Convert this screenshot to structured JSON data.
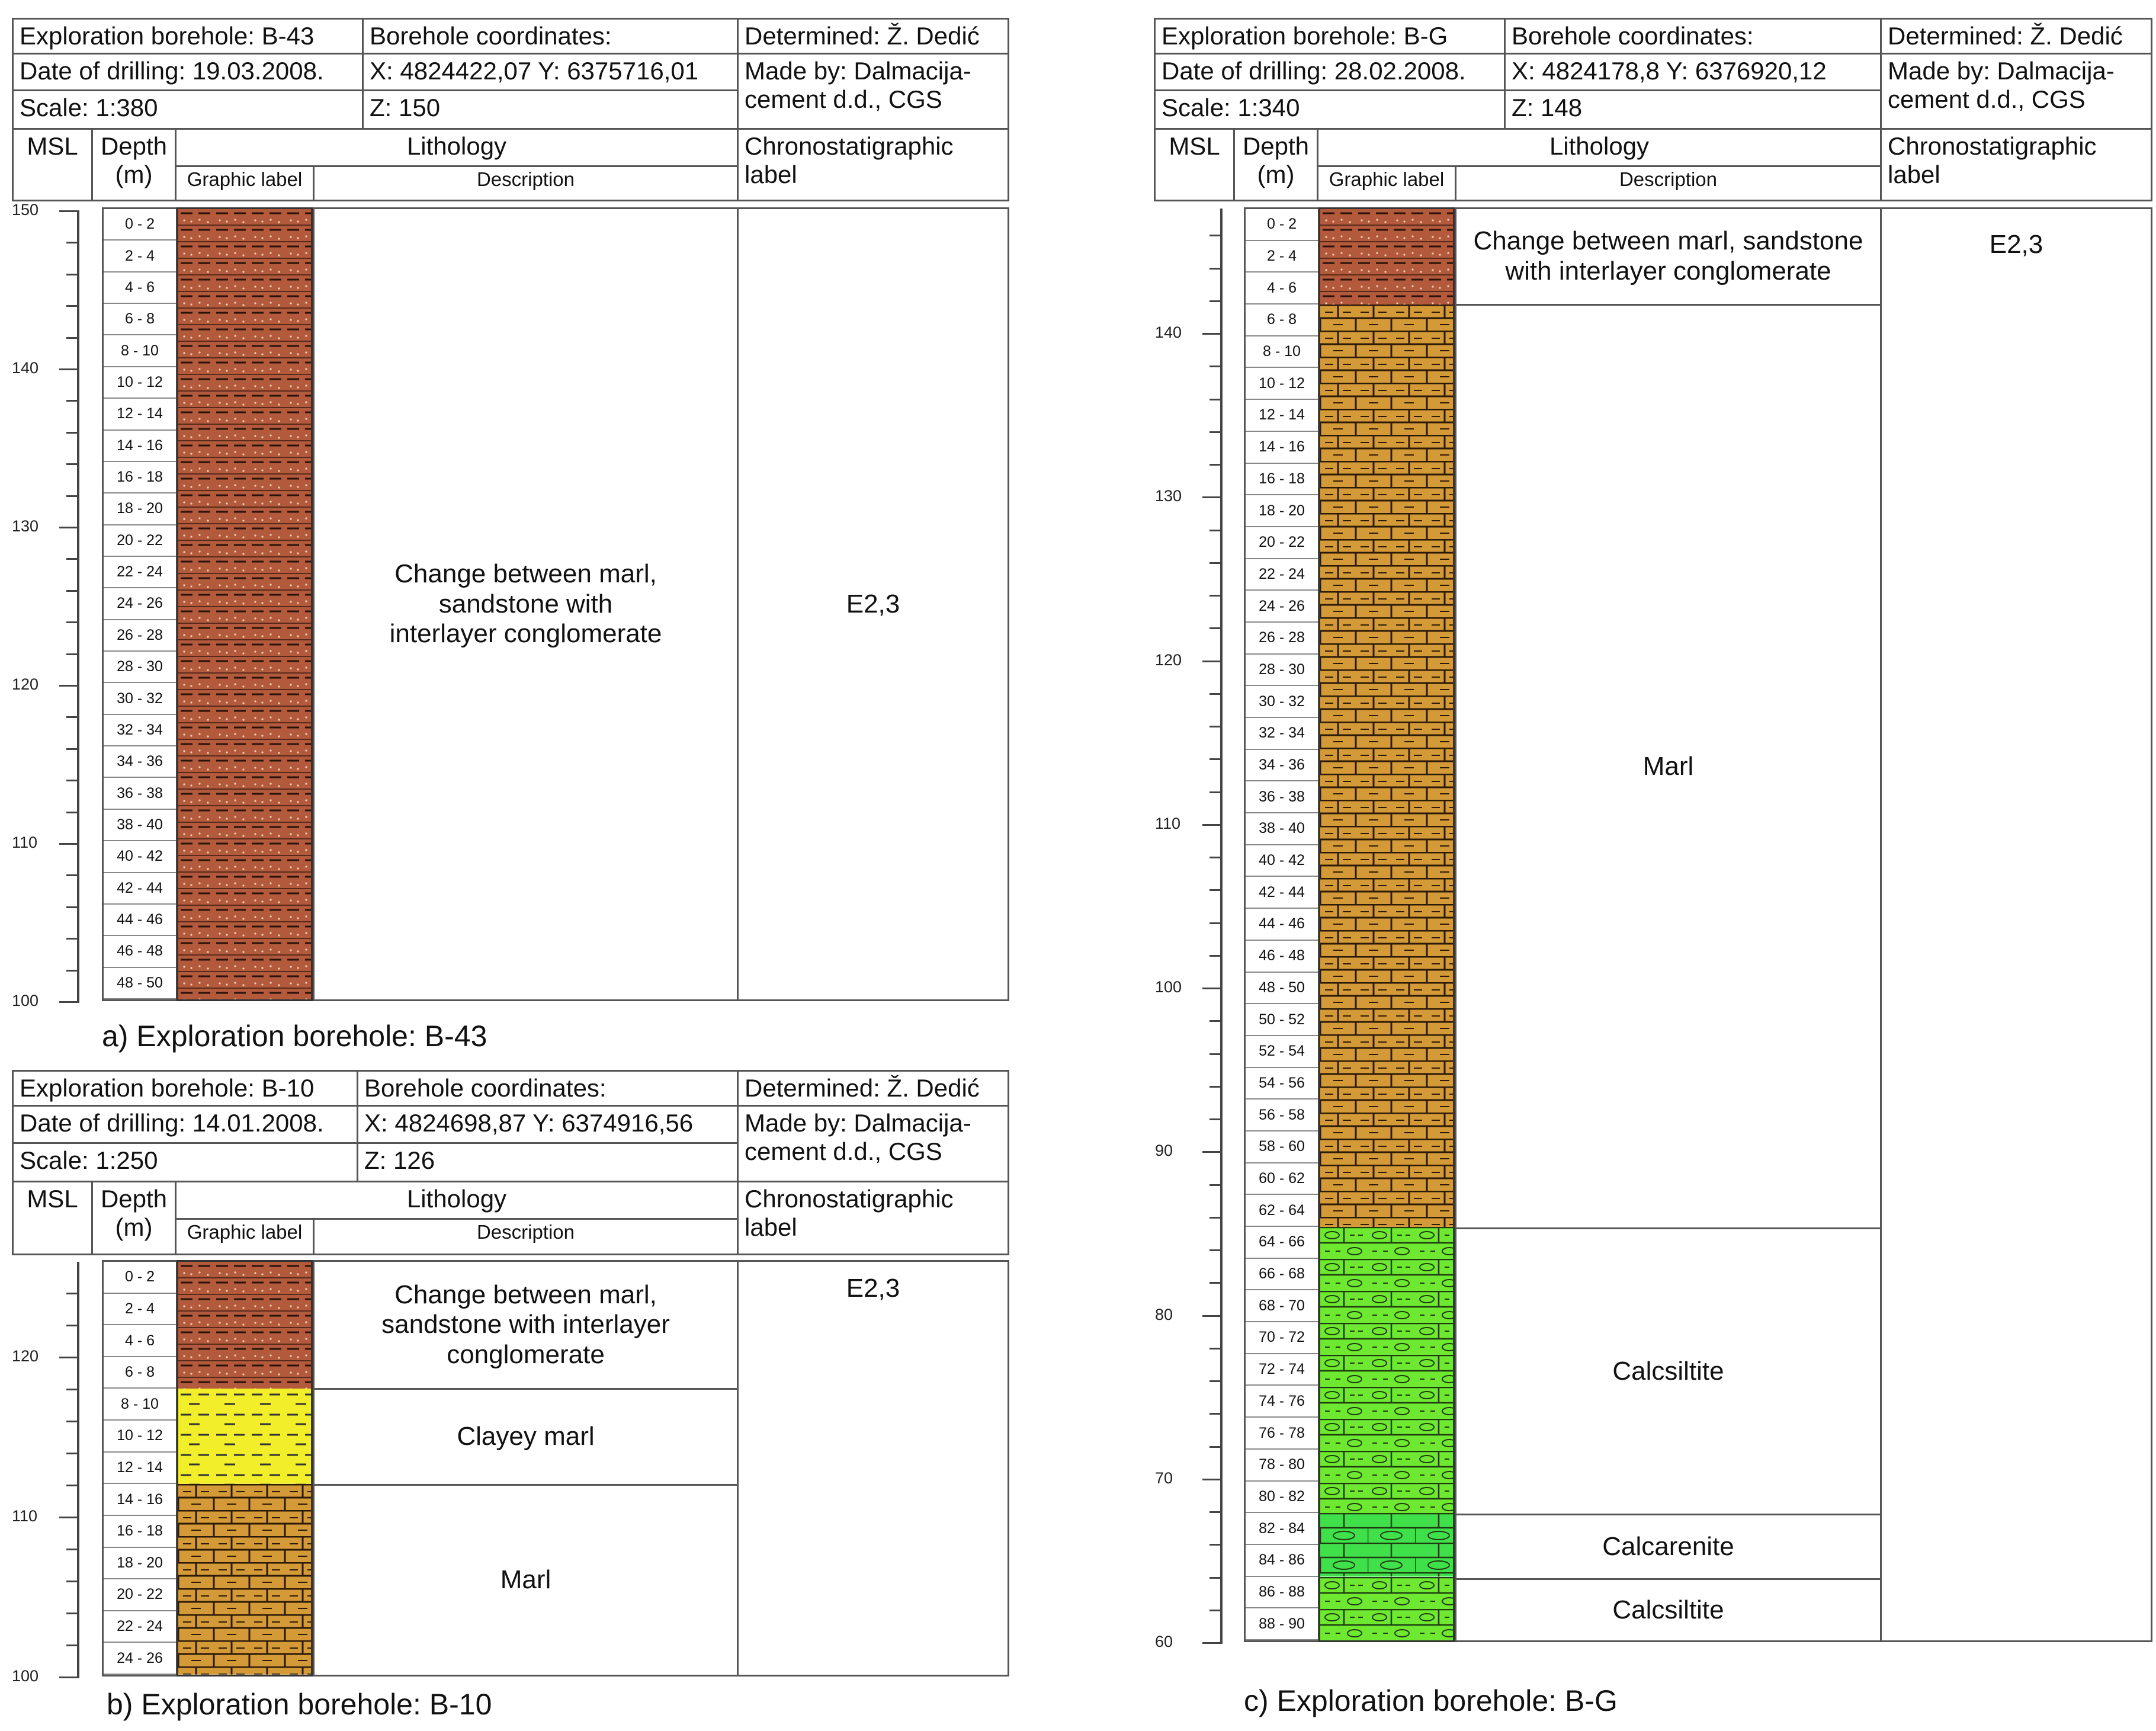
{
  "panels": [
    {
      "id": "b43",
      "header": {
        "borehole": "Exploration borehole: B-43",
        "date": "Date of drilling: 19.03.2008.",
        "scale": "Scale: 1:380",
        "coords_title": "Borehole coordinates:",
        "coords_xy": "X: 4824422,07  Y: 6375716,01",
        "coords_z": "Z: 150",
        "determined": "Determined: Ž. Dedić",
        "made_by": "Made by: Dalmacija-cement d.d., CGS",
        "msl": "MSL",
        "depth": "Depth (m)",
        "lithology": "Lithology",
        "graphic_label": "Graphic label",
        "description": "Description",
        "chrono": "Chronostatigraphic label"
      },
      "msl_ticks": [
        "150",
        "140",
        "130",
        "120",
        "110",
        "100"
      ],
      "depth_intervals": [
        "0 - 2",
        "2 - 4",
        "4 - 6",
        "6 - 8",
        "8 - 10",
        "10 - 12",
        "12 - 14",
        "14 - 16",
        "16 - 18",
        "18 - 20",
        "20 - 22",
        "22 - 24",
        "24 - 26",
        "26 - 28",
        "28 - 30",
        "30 - 32",
        "32 - 34",
        "34 - 36",
        "36 - 38",
        "38 - 40",
        "40 - 42",
        "42 - 44",
        "44 - 46",
        "46 - 48",
        "48 - 50"
      ],
      "units": [
        {
          "from": 0,
          "to": 50,
          "lithology": "flysch",
          "description": "Change between marl, sandstone with interlayer conglomerate"
        }
      ],
      "chrono_label": "E2,3",
      "caption": "a) Exploration borehole: B-43"
    },
    {
      "id": "b10",
      "header": {
        "borehole": "Exploration borehole: B-10",
        "date": "Date of drilling: 14.01.2008.",
        "scale": "Scale: 1:250",
        "coords_title": "Borehole coordinates:",
        "coords_xy": "X: 4824698,87  Y: 6374916,56",
        "coords_z": "Z: 126",
        "determined": "Determined: Ž. Dedić",
        "made_by": "Made by: Dalmacija-cement d.d., CGS",
        "msl": "MSL",
        "depth": "Depth (m)",
        "lithology": "Lithology",
        "graphic_label": "Graphic label",
        "description": "Description",
        "chrono": "Chronostatigraphic label"
      },
      "msl_ticks": [
        "120",
        "110",
        "100"
      ],
      "depth_intervals": [
        "0 - 2",
        "2 - 4",
        "4 - 6",
        "6 - 8",
        "8 - 10",
        "10 - 12",
        "12 - 14",
        "14 - 16",
        "16 - 18",
        "18 - 20",
        "20 - 22",
        "22 - 24",
        "24 - 26"
      ],
      "units": [
        {
          "from": 0,
          "to": 8,
          "lithology": "flysch",
          "description": "Change between marl, sandstone with interlayer conglomerate"
        },
        {
          "from": 8,
          "to": 14,
          "lithology": "clayey-marl",
          "description": "Clayey marl"
        },
        {
          "from": 14,
          "to": 26,
          "lithology": "marl",
          "description": "Marl"
        }
      ],
      "chrono_label": "E2,3",
      "caption": "b) Exploration borehole: B-10"
    },
    {
      "id": "bg",
      "header": {
        "borehole": "Exploration borehole: B-G",
        "date": "Date of drilling: 28.02.2008.",
        "scale": "Scale: 1:340",
        "coords_title": "Borehole coordinates:",
        "coords_xy": "X: 4824178,8  Y: 6376920,12",
        "coords_z": "Z: 148",
        "determined": "Determined: Ž. Dedić",
        "made_by": "Made by: Dalmacija-cement d.d., CGS",
        "msl": "MSL",
        "depth": "Depth (m)",
        "lithology": "Lithology",
        "graphic_label": "Graphic label",
        "description": "Description",
        "chrono": "Chronostatigraphic label"
      },
      "msl_ticks": [
        "140",
        "130",
        "120",
        "110",
        "100",
        "90",
        "80",
        "70",
        "60"
      ],
      "depth_intervals": [
        "0 - 2",
        "2 - 4",
        "4 - 6",
        "6 - 8",
        "8 - 10",
        "10 - 12",
        "12 - 14",
        "14 - 16",
        "16 - 18",
        "18 - 20",
        "20 - 22",
        "22 - 24",
        "24 - 26",
        "26 - 28",
        "28 - 30",
        "30 - 32",
        "32 - 34",
        "34 - 36",
        "36 - 38",
        "38 - 40",
        "40 - 42",
        "42 - 44",
        "44 - 46",
        "46 - 48",
        "48 - 50",
        "50 - 52",
        "52 - 54",
        "54 - 56",
        "56 - 58",
        "58 - 60",
        "60 - 62",
        "62 - 64",
        "64 - 66",
        "66 - 68",
        "68 - 70",
        "70 - 72",
        "72 - 74",
        "74 - 76",
        "76 - 78",
        "78 - 80",
        "80 - 82",
        "82 - 84",
        "84 - 86",
        "86 - 88",
        "88 - 90"
      ],
      "units": [
        {
          "from": 0,
          "to": 6,
          "lithology": "flysch",
          "description": "Change between marl, sandstone with interlayer conglomerate"
        },
        {
          "from": 6,
          "to": 64,
          "lithology": "marl",
          "description": "Marl"
        },
        {
          "from": 64,
          "to": 82,
          "lithology": "calcsiltite",
          "description": "Calcsiltite"
        },
        {
          "from": 82,
          "to": 86,
          "lithology": "calcarenite",
          "description": "Calcarenite"
        },
        {
          "from": 86,
          "to": 90,
          "lithology": "calcsiltite",
          "description": "Calcsiltite"
        }
      ],
      "chrono_label": "E2,3",
      "caption": "c) Exploration borehole: B-G"
    }
  ],
  "lithology_colors": {
    "flysch": "#b35a3c",
    "clayey-marl": "#f2ee2a",
    "marl": "#d49a37",
    "calcsiltite": "#6ee830",
    "calcarenite": "#3fe04a"
  }
}
